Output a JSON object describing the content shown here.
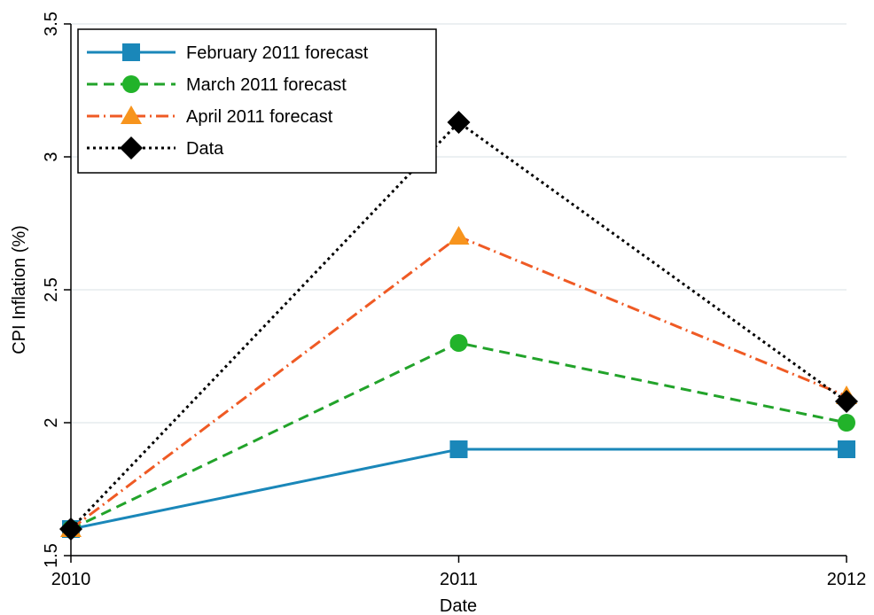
{
  "chart_data": {
    "type": "line",
    "x_label": "Date",
    "y_label": "CPI Inflation (%)",
    "x": [
      2010,
      2011,
      2012
    ],
    "xlim": [
      2010,
      2012
    ],
    "xticks": [
      2010,
      2011,
      2012
    ],
    "ylim": [
      1.5,
      3.5
    ],
    "yticks": [
      1.5,
      2,
      2.5,
      3,
      3.5
    ],
    "grid": true,
    "legend": "top-left",
    "series": [
      {
        "name": "February 2011 forecast",
        "color": "#1a87b9",
        "marker_color": "#1a87b9",
        "dash": "solid",
        "marker": "square",
        "values": [
          1.6,
          1.9,
          1.9
        ]
      },
      {
        "name": "March 2011 forecast",
        "color": "#22a32a",
        "marker_color": "#22b32a",
        "dash": "dashed",
        "marker": "circle",
        "values": [
          1.6,
          2.3,
          2.0
        ]
      },
      {
        "name": "April 2011 forecast",
        "color": "#ef5a24",
        "marker_color": "#f7941d",
        "dash": "dashdot",
        "marker": "triangle",
        "values": [
          1.6,
          2.7,
          2.1
        ]
      },
      {
        "name": "Data",
        "color": "#000000",
        "marker_color": "#000000",
        "dash": "dotted",
        "marker": "diamond",
        "values": [
          1.6,
          3.13,
          2.08
        ]
      }
    ]
  }
}
